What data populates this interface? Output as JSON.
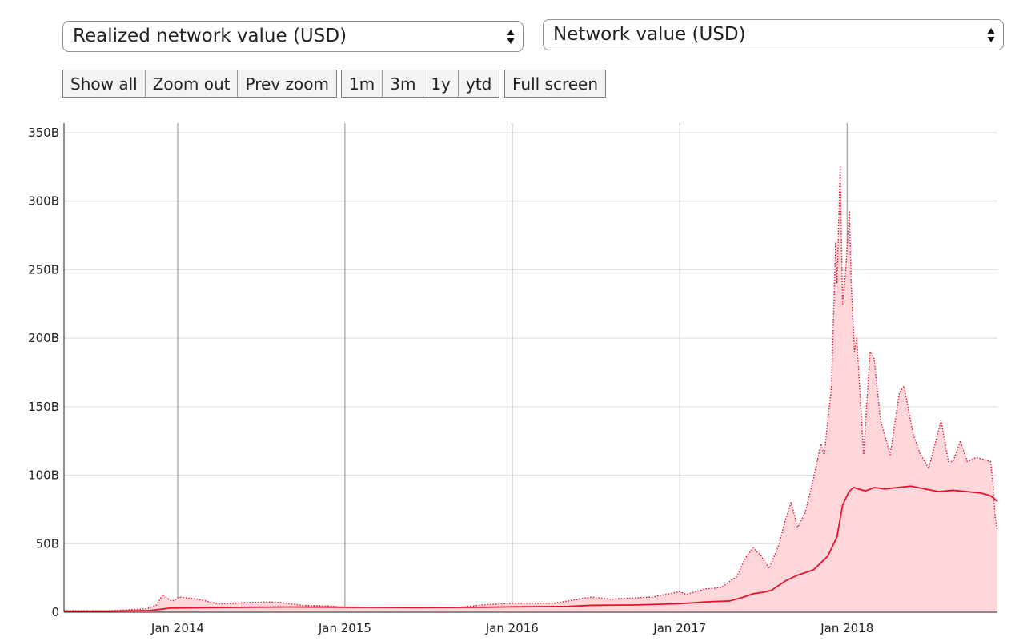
{
  "controls": {
    "left_select": {
      "value": "Realized network value (USD)"
    },
    "right_select": {
      "value": "Network value (USD)"
    },
    "zoom_buttons": [
      "Show all",
      "Zoom out",
      "Prev zoom"
    ],
    "range_buttons": [
      "1m",
      "3m",
      "1y",
      "ytd"
    ],
    "fullscreen_button": "Full screen"
  },
  "colors": {
    "realized_line": "#e8112d",
    "network_line": "#e8112d",
    "fill": "#ffd6da",
    "grid": "#d9d9d9",
    "year_grid": "#8a8a8a"
  },
  "chart_data": {
    "type": "line",
    "grid": true,
    "ylim": [
      0,
      350
    ],
    "y_unit": "B USD",
    "y_ticks": [
      "0",
      "50B",
      "100B",
      "150B",
      "200B",
      "250B",
      "300B",
      "350B"
    ],
    "y_tick_values": [
      0,
      50,
      100,
      150,
      200,
      250,
      300,
      350
    ],
    "x_ticks": [
      "Jan 2014",
      "Jan 2015",
      "Jan 2016",
      "Jan 2017",
      "Jan 2018"
    ],
    "x_tick_values": [
      "2014-01-01",
      "2015-01-01",
      "2016-01-01",
      "2017-01-01",
      "2018-01-01"
    ],
    "xlim": [
      "2013-04-28",
      "2018-11-25"
    ],
    "series": [
      {
        "name": "Realized network value (USD)",
        "style": "solid",
        "points": [
          [
            "2013-04-28",
            0.7
          ],
          [
            "2013-08-01",
            0.8
          ],
          [
            "2013-11-01",
            1.2
          ],
          [
            "2013-11-25",
            2.2
          ],
          [
            "2013-12-15",
            3.0
          ],
          [
            "2014-03-01",
            3.3
          ],
          [
            "2014-06-01",
            3.6
          ],
          [
            "2014-09-01",
            3.8
          ],
          [
            "2015-01-01",
            3.6
          ],
          [
            "2015-06-01",
            3.4
          ],
          [
            "2015-11-01",
            3.6
          ],
          [
            "2016-01-01",
            3.9
          ],
          [
            "2016-05-01",
            4.2
          ],
          [
            "2016-06-20",
            5.0
          ],
          [
            "2016-10-01",
            5.3
          ],
          [
            "2017-01-01",
            6.2
          ],
          [
            "2017-03-01",
            7.6
          ],
          [
            "2017-04-20",
            8.2
          ],
          [
            "2017-05-20",
            11.0
          ],
          [
            "2017-06-10",
            13.5
          ],
          [
            "2017-07-01",
            14.5
          ],
          [
            "2017-07-20",
            16.0
          ],
          [
            "2017-08-20",
            23.0
          ],
          [
            "2017-09-15",
            27.0
          ],
          [
            "2017-10-20",
            31.0
          ],
          [
            "2017-11-20",
            41.0
          ],
          [
            "2017-12-10",
            55.0
          ],
          [
            "2017-12-22",
            78.0
          ],
          [
            "2018-01-05",
            88.0
          ],
          [
            "2018-01-15",
            91.0
          ],
          [
            "2018-02-10",
            88.5
          ],
          [
            "2018-03-01",
            91.0
          ],
          [
            "2018-03-25",
            90.0
          ],
          [
            "2018-04-20",
            91.0
          ],
          [
            "2018-05-20",
            92.0
          ],
          [
            "2018-06-20",
            90.0
          ],
          [
            "2018-07-20",
            88.0
          ],
          [
            "2018-08-20",
            89.0
          ],
          [
            "2018-09-20",
            88.0
          ],
          [
            "2018-10-20",
            87.0
          ],
          [
            "2018-11-10",
            85.0
          ],
          [
            "2018-11-25",
            81.0
          ]
        ]
      },
      {
        "name": "Network value (USD)",
        "style": "dotted",
        "points": [
          [
            "2013-04-28",
            1.2
          ],
          [
            "2013-08-01",
            1.0
          ],
          [
            "2013-10-25",
            2.5
          ],
          [
            "2013-11-15",
            5.0
          ],
          [
            "2013-11-30",
            13.0
          ],
          [
            "2013-12-10",
            10.0
          ],
          [
            "2013-12-20",
            8.0
          ],
          [
            "2014-01-05",
            11.0
          ],
          [
            "2014-02-15",
            9.5
          ],
          [
            "2014-04-01",
            6.0
          ],
          [
            "2014-06-01",
            7.0
          ],
          [
            "2014-08-01",
            7.5
          ],
          [
            "2014-10-01",
            5.0
          ],
          [
            "2014-12-01",
            4.5
          ],
          [
            "2015-01-15",
            3.2
          ],
          [
            "2015-03-01",
            3.7
          ],
          [
            "2015-06-01",
            3.5
          ],
          [
            "2015-09-01",
            3.4
          ],
          [
            "2015-11-05",
            5.5
          ],
          [
            "2016-01-01",
            6.5
          ],
          [
            "2016-04-01",
            6.5
          ],
          [
            "2016-06-20",
            11.0
          ],
          [
            "2016-08-01",
            9.5
          ],
          [
            "2016-11-01",
            11.0
          ],
          [
            "2017-01-01",
            15.0
          ],
          [
            "2017-01-15",
            13.0
          ],
          [
            "2017-02-25",
            17.0
          ],
          [
            "2017-04-01",
            18.0
          ],
          [
            "2017-05-05",
            26.0
          ],
          [
            "2017-05-25",
            40.0
          ],
          [
            "2017-06-10",
            47.0
          ],
          [
            "2017-06-25",
            42.0
          ],
          [
            "2017-07-15",
            32.0
          ],
          [
            "2017-08-05",
            49.0
          ],
          [
            "2017-08-20",
            68.0
          ],
          [
            "2017-09-01",
            80.0
          ],
          [
            "2017-09-15",
            62.0
          ],
          [
            "2017-10-01",
            72.0
          ],
          [
            "2017-10-20",
            98.0
          ],
          [
            "2017-11-05",
            123.0
          ],
          [
            "2017-11-12",
            115.0
          ],
          [
            "2017-11-28",
            165.0
          ],
          [
            "2017-12-07",
            270.0
          ],
          [
            "2017-12-10",
            240.0
          ],
          [
            "2017-12-17",
            325.0
          ],
          [
            "2017-12-22",
            225.0
          ],
          [
            "2017-12-28",
            245.0
          ],
          [
            "2018-01-06",
            293.0
          ],
          [
            "2018-01-10",
            240.0
          ],
          [
            "2018-01-17",
            190.0
          ],
          [
            "2018-01-22",
            200.0
          ],
          [
            "2018-02-06",
            115.0
          ],
          [
            "2018-02-20",
            190.0
          ],
          [
            "2018-03-01",
            185.0
          ],
          [
            "2018-03-15",
            140.0
          ],
          [
            "2018-04-05",
            115.0
          ],
          [
            "2018-04-25",
            160.0
          ],
          [
            "2018-05-05",
            165.0
          ],
          [
            "2018-05-25",
            130.0
          ],
          [
            "2018-06-10",
            115.0
          ],
          [
            "2018-06-28",
            105.0
          ],
          [
            "2018-07-25",
            140.0
          ],
          [
            "2018-08-10",
            110.0
          ],
          [
            "2018-08-20",
            110.0
          ],
          [
            "2018-09-05",
            125.0
          ],
          [
            "2018-09-20",
            110.0
          ],
          [
            "2018-10-10",
            113.0
          ],
          [
            "2018-11-10",
            110.0
          ],
          [
            "2018-11-15",
            95.0
          ],
          [
            "2018-11-20",
            70.0
          ],
          [
            "2018-11-25",
            60.0
          ]
        ]
      }
    ]
  }
}
